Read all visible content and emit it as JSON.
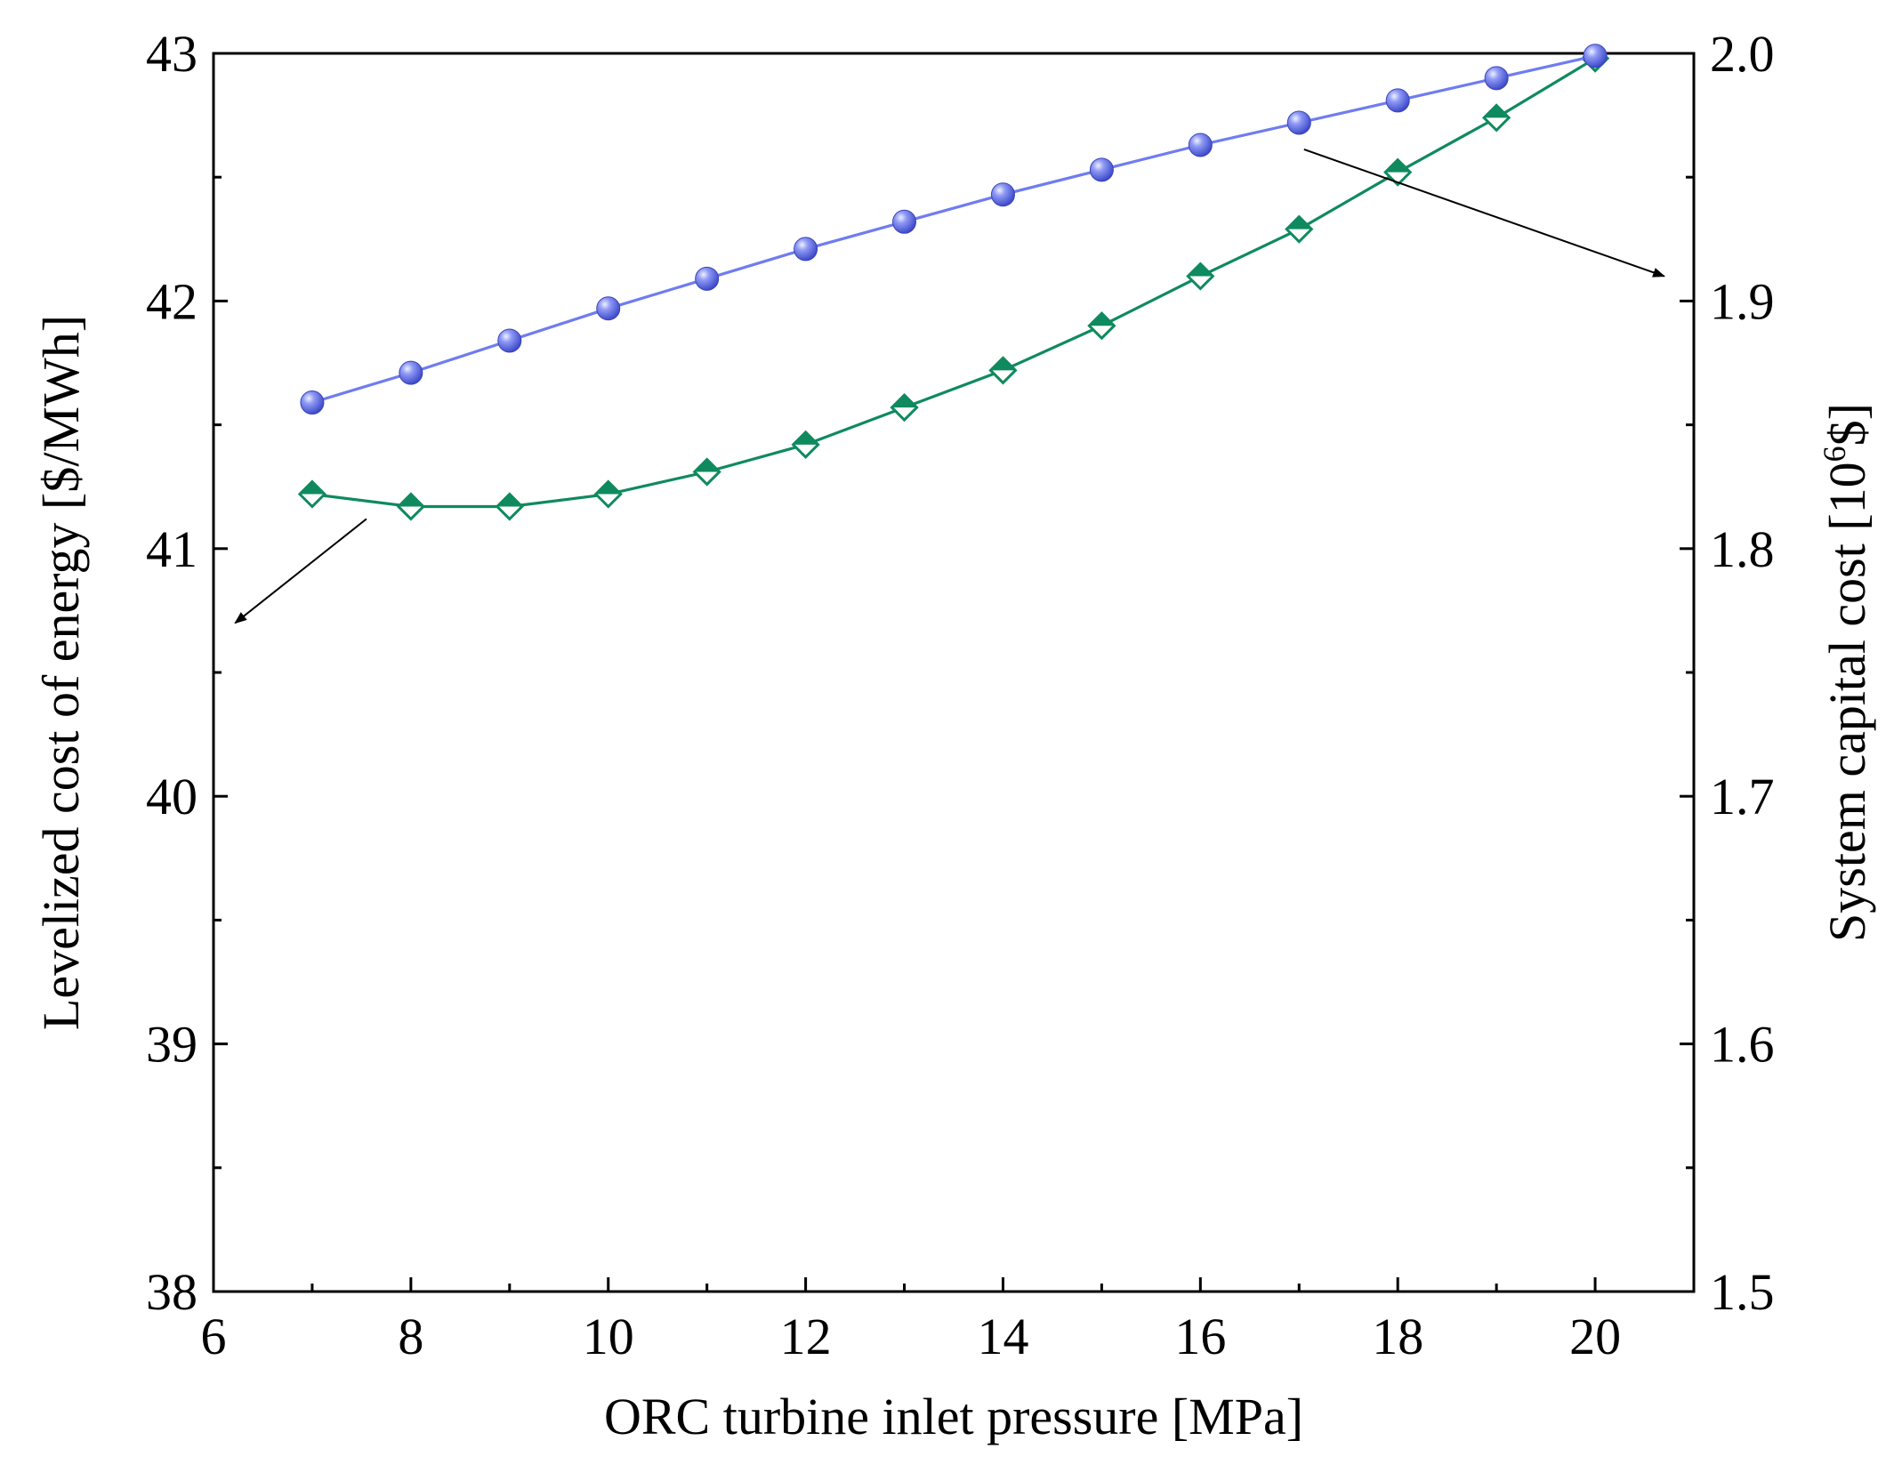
{
  "chart_data": {
    "type": "line",
    "title": "",
    "xlabel": "ORC turbine inlet pressure [MPa]",
    "ylabel_left": "Levelized cost of energy [$/MWh]",
    "ylabel_right_prefix": "System capital cost [10",
    "ylabel_right_sup": "6",
    "ylabel_right_suffix": "$]",
    "xlim": [
      6,
      21
    ],
    "ylim_left": [
      38,
      43
    ],
    "ylim_right": [
      1.5,
      2.0
    ],
    "x_ticks": [
      "6",
      "8",
      "10",
      "12",
      "14",
      "16",
      "18",
      "20"
    ],
    "y_left_ticks": [
      "38",
      "39",
      "40",
      "41",
      "42",
      "43"
    ],
    "y_right_ticks": [
      "1.5",
      "1.6",
      "1.7",
      "1.8",
      "1.9",
      "2.0"
    ],
    "grid": false,
    "legend": "none",
    "x": [
      7,
      8,
      9,
      10,
      11,
      12,
      13,
      14,
      15,
      16,
      17,
      18,
      19,
      20
    ],
    "series": [
      {
        "axis": "left",
        "marker": "diamond-half-filled",
        "color": "#0f8a5f",
        "values": [
          41.22,
          41.17,
          41.17,
          41.22,
          41.31,
          41.42,
          41.57,
          41.72,
          41.9,
          42.1,
          42.29,
          42.52,
          42.74,
          42.98
        ]
      },
      {
        "axis": "right",
        "marker": "sphere",
        "color": "#6f7cf0",
        "values": [
          1.859,
          1.871,
          1.884,
          1.897,
          1.909,
          1.921,
          1.932,
          1.943,
          1.953,
          1.963,
          1.972,
          1.981,
          1.99,
          1.999
        ]
      }
    ],
    "annotations": [
      {
        "type": "arrow",
        "points_to": "left-axis",
        "from_series": "left",
        "from_x": 7.5
      },
      {
        "type": "arrow",
        "points_to": "right-axis",
        "from_series": "right",
        "from_x": 17
      }
    ]
  }
}
